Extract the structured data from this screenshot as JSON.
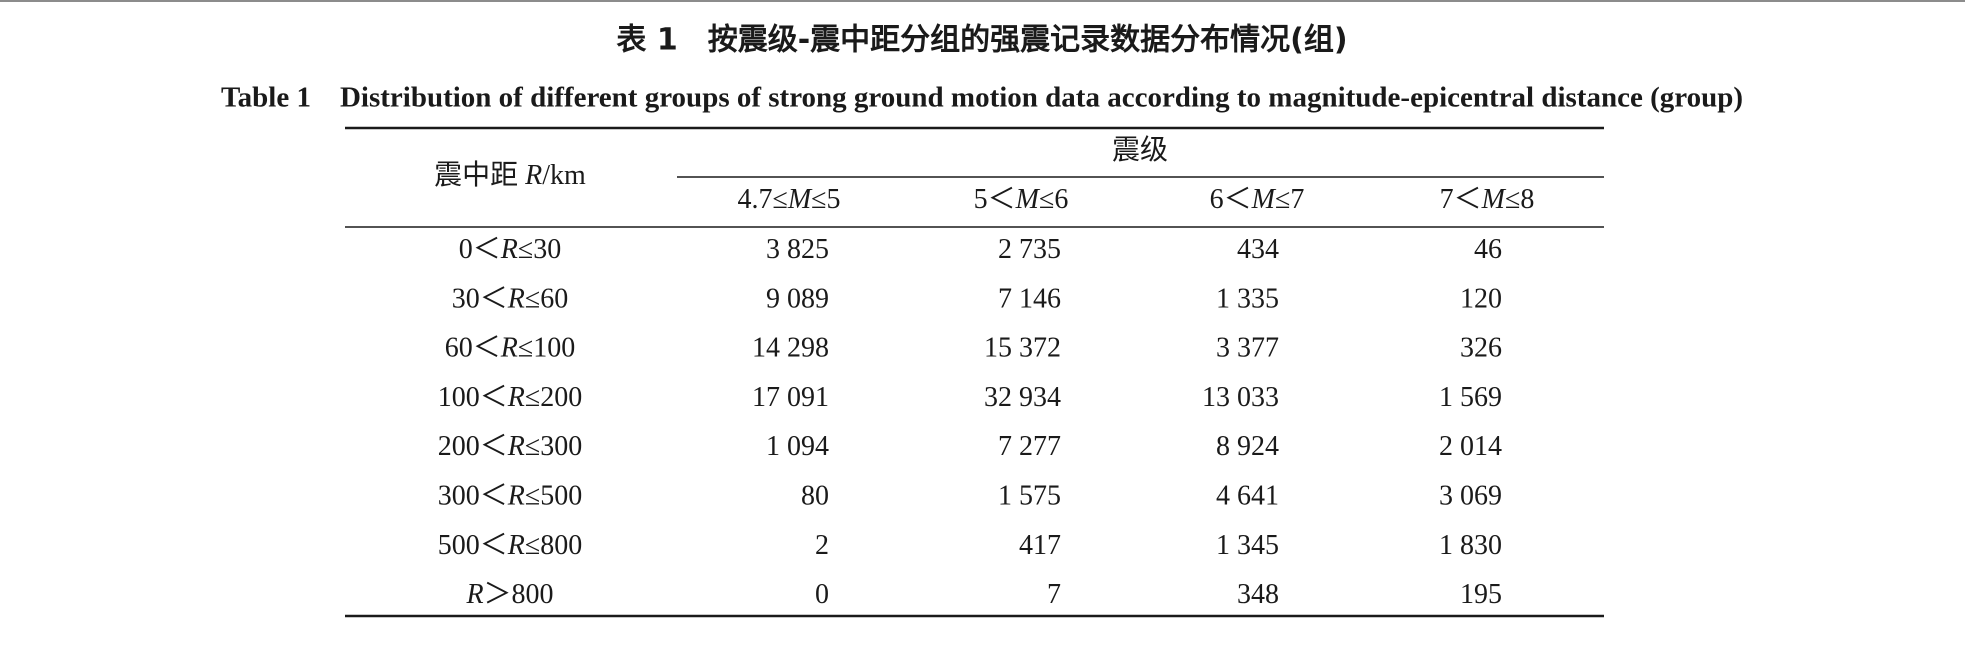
{
  "header": {
    "title_zh": "表 1　按震级-震中距分组的强震记录数据分布情况(组)",
    "title_en": "Table 1　Distribution of different groups of strong ground motion data according to magnitude-epicentral distance (group)"
  },
  "table": {
    "row_header": "震中距 R/km",
    "group_header": "震级",
    "columns": [
      "4.7≤M≤5",
      "5＜M≤6",
      "6＜M≤7",
      "7＜M≤8"
    ],
    "rows": [
      [
        "0＜R≤30",
        "3 825",
        "2 735",
        "434",
        "46"
      ],
      [
        "30＜R≤60",
        "9 089",
        "7 146",
        "1 335",
        "120"
      ],
      [
        "60＜R≤100",
        "14 298",
        "15 372",
        "3 377",
        "326"
      ],
      [
        "100＜R≤200",
        "17 091",
        "32 934",
        "13 033",
        "1 569"
      ],
      [
        "200＜R≤300",
        "1 094",
        "7 277",
        "8 924",
        "2 014"
      ],
      [
        "300＜R≤500",
        "80",
        "1 575",
        "4 641",
        "3 069"
      ],
      [
        "500＜R≤800",
        "2",
        "417",
        "1 345",
        "1 830"
      ],
      [
        "R＞800",
        "0",
        "7",
        "348",
        "195"
      ]
    ]
  }
}
